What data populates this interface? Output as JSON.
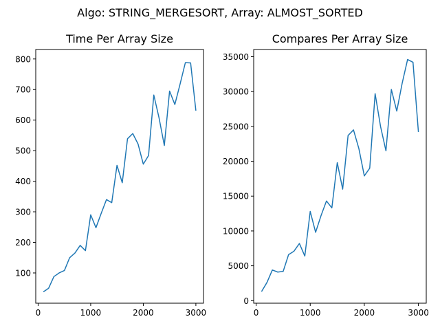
{
  "figure": {
    "suptitle": "Algo: STRING_MERGESORT, Array: ALMOST_SORTED",
    "line_color": "#1f77b4"
  },
  "chart_data": [
    {
      "type": "line",
      "title": "Time Per Array Size",
      "xlabel": "",
      "ylabel": "",
      "xlim": [
        -45,
        3145
      ],
      "ylim": [
        1,
        831
      ],
      "xticks": [
        0,
        1000,
        2000,
        3000
      ],
      "xtick_labels": [
        "0",
        "1000",
        "2000",
        "3000"
      ],
      "yticks": [
        100,
        200,
        300,
        400,
        500,
        600,
        700,
        800
      ],
      "ytick_labels": [
        "100",
        "200",
        "300",
        "400",
        "500",
        "600",
        "700",
        "800"
      ],
      "grid": false,
      "series": [
        {
          "x": [
            100,
            200,
            300,
            400,
            500,
            600,
            700,
            800,
            900,
            1000,
            1100,
            1200,
            1300,
            1400,
            1500,
            1600,
            1700,
            1800,
            1900,
            2000,
            2100,
            2200,
            2300,
            2400,
            2500,
            2600,
            2700,
            2800,
            2900,
            3000
          ],
          "values": [
            38,
            50,
            88,
            100,
            108,
            150,
            165,
            190,
            173,
            290,
            248,
            295,
            340,
            330,
            452,
            395,
            539,
            556,
            522,
            456,
            484,
            682,
            607,
            517,
            695,
            651,
            718,
            788,
            787,
            631
          ]
        }
      ]
    },
    {
      "type": "line",
      "title": "Compares Per Array Size",
      "xlabel": "",
      "ylabel": "",
      "xlim": [
        -45,
        3145
      ],
      "ylim": [
        -365,
        36035
      ],
      "xticks": [
        0,
        1000,
        2000,
        3000
      ],
      "xtick_labels": [
        "0",
        "1000",
        "2000",
        "3000"
      ],
      "yticks": [
        0,
        5000,
        10000,
        15000,
        20000,
        25000,
        30000,
        35000
      ],
      "ytick_labels": [
        "0",
        "5000",
        "10000",
        "15000",
        "20000",
        "25000",
        "30000",
        "35000"
      ],
      "grid": false,
      "series": [
        {
          "x": [
            100,
            200,
            300,
            400,
            500,
            600,
            700,
            800,
            900,
            1000,
            1100,
            1200,
            1300,
            1400,
            1500,
            1600,
            1700,
            1800,
            1900,
            2000,
            2100,
            2200,
            2300,
            2400,
            2500,
            2600,
            2700,
            2800,
            2900,
            3000
          ],
          "values": [
            1300,
            2600,
            4400,
            4100,
            4200,
            6600,
            7100,
            8200,
            6400,
            12800,
            9800,
            12200,
            14300,
            13300,
            19800,
            16000,
            23700,
            24500,
            21800,
            17900,
            19000,
            29700,
            25000,
            21500,
            30300,
            27200,
            31200,
            34600,
            34200,
            24200
          ]
        }
      ]
    }
  ]
}
